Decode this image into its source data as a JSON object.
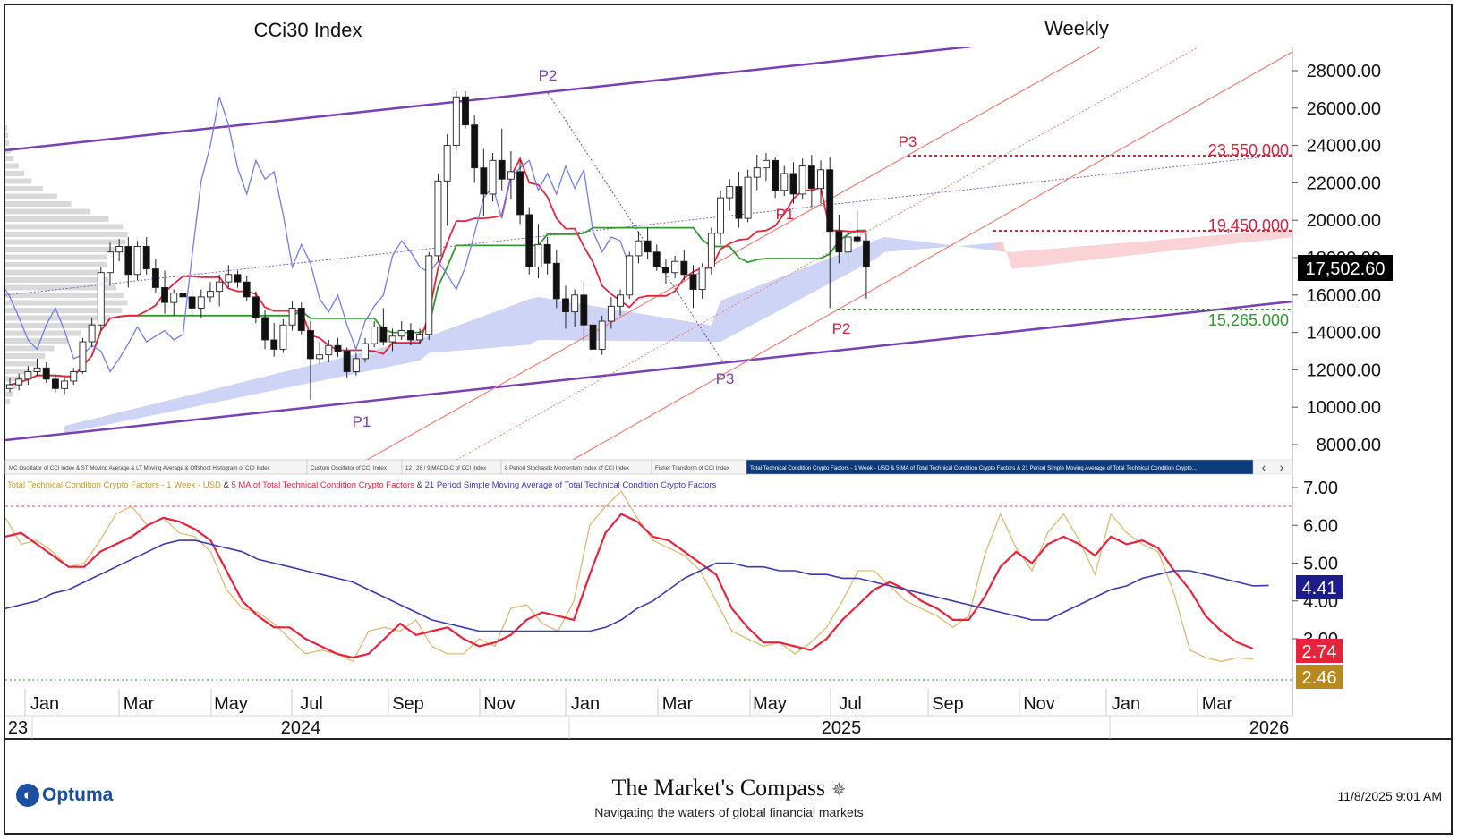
{
  "header": {
    "title": "CCi30 Index",
    "period": "Weekly"
  },
  "price_axis": {
    "ticks": [
      "28000.00",
      "26000.00",
      "24000.00",
      "22000.00",
      "20000.00",
      "18000.00",
      "16000.00",
      "14000.00",
      "12000.00",
      "10000.00",
      "8000.00"
    ],
    "last_price": "17,502.60"
  },
  "levels": {
    "resistance_upper": "23,550.000",
    "resistance_lower": "19,450.000",
    "support": "15,265.000"
  },
  "pivot_labels": {
    "purple": [
      "P1",
      "P2",
      "P3"
    ],
    "red": [
      "P1",
      "P2",
      "P3"
    ]
  },
  "indicator_tabs": [
    "MC Oscillator of CCI Index & ST Moving Average & LT Moving Average & Offshoot Histogram of CCI Index",
    "Custom Oscillator of CCI Index",
    "12 / 26 / 9 MACD-C of CCI Index",
    "8 Period Stochastic Momentum Index of CCI Index",
    "Fisher Transform of CCI Index",
    "Total Technical Condition Crypto Factors - 1 Week - USD & 5 MA of Total Technical Condition Crypto Factors & 21 Period Simple Moving Average of Total Technical Condition Crypto..."
  ],
  "tab_nav": {
    "prev": "‹",
    "next": "›"
  },
  "lower_panel": {
    "legend": {
      "series1": "Total Technical Condition Crypto Factors - 1 Week - USD",
      "sep1": " & ",
      "series2": "5 MA of Total Technical Condition Crypto Factors",
      "sep2": " & ",
      "series3": "21 Period Simple Moving Average of Total Technical Condition Crypto Factors"
    },
    "ticks": [
      "7.00",
      "6.00",
      "5.00",
      "4.00",
      "3.00"
    ],
    "value_blue": "4.41",
    "value_red": "2.74",
    "value_gold": "2.46"
  },
  "time_axis": {
    "months": [
      "Jan",
      "Mar",
      "May",
      "Jul",
      "Sep",
      "Nov",
      "Jan",
      "Mar",
      "May",
      "Jul",
      "Sep",
      "Nov",
      "Jan",
      "Mar"
    ],
    "years": [
      "23",
      "2024",
      "2025",
      "2026"
    ]
  },
  "footer": {
    "logo": "Optuma",
    "publisher": "The Market's Compass",
    "tagline": "Navigating the waters of global financial markets",
    "timestamp": "11/8/2025 9:01 AM"
  },
  "colors": {
    "sma21": "#3a3ab0",
    "ma5": "#e8243c",
    "tcf": "#e0b870",
    "kijun": "#2e9a2e",
    "tenkan": "#e8243c",
    "chikou": "#6f7cf0",
    "cloud": "#c5cdf5",
    "channel": "#7a3fb5",
    "pitchfork": "#f08070",
    "support": "#2e9a2e",
    "resistance": "#d6203c"
  },
  "chart_data": [
    {
      "type": "candlestick",
      "title": "CCi30 Index",
      "subtitle": "Weekly",
      "ylim": [
        7000,
        29000
      ],
      "ohlc": [
        [
          11000,
          11600,
          10800,
          11200
        ],
        [
          11200,
          11800,
          10900,
          11500
        ],
        [
          11500,
          12200,
          11200,
          11900
        ],
        [
          11900,
          12600,
          11700,
          12100
        ],
        [
          12100,
          12400,
          11300,
          11500
        ],
        [
          11500,
          11700,
          10800,
          11000
        ],
        [
          11000,
          11600,
          10700,
          11400
        ],
        [
          11400,
          12100,
          11200,
          11900
        ],
        [
          11900,
          13700,
          11800,
          13500
        ],
        [
          13500,
          14800,
          13200,
          14400
        ],
        [
          14400,
          17500,
          14100,
          17200
        ],
        [
          17200,
          18800,
          16500,
          18300
        ],
        [
          18300,
          19000,
          17800,
          18600
        ],
        [
          18600,
          19100,
          16400,
          17100
        ],
        [
          17100,
          18900,
          16800,
          18600
        ],
        [
          18600,
          19100,
          17100,
          17400
        ],
        [
          17400,
          17900,
          16100,
          16400
        ],
        [
          16400,
          17300,
          15000,
          15600
        ],
        [
          15600,
          16300,
          14900,
          16100
        ],
        [
          16100,
          16700,
          15700,
          15900
        ],
        [
          15900,
          16300,
          14900,
          15300
        ],
        [
          15300,
          16300,
          14800,
          15900
        ],
        [
          15900,
          16700,
          15600,
          16200
        ],
        [
          16200,
          17100,
          15400,
          16700
        ],
        [
          16700,
          17600,
          16400,
          17100
        ],
        [
          17100,
          17300,
          16400,
          16700
        ],
        [
          16700,
          17000,
          15700,
          15900
        ],
        [
          15900,
          16200,
          14500,
          14800
        ],
        [
          14800,
          15200,
          13100,
          13600
        ],
        [
          13600,
          14500,
          12700,
          13100
        ],
        [
          13100,
          14700,
          12900,
          14400
        ],
        [
          14400,
          15700,
          14100,
          15300
        ],
        [
          15300,
          15600,
          13900,
          14100
        ],
        [
          14100,
          14600,
          10400,
          12600
        ],
        [
          12600,
          13500,
          12300,
          12800
        ],
        [
          12800,
          13600,
          12400,
          13300
        ],
        [
          13300,
          13700,
          12700,
          13000
        ],
        [
          13000,
          13200,
          11600,
          11900
        ],
        [
          11900,
          12900,
          11700,
          12600
        ],
        [
          12600,
          13700,
          12400,
          13400
        ],
        [
          13400,
          14600,
          13200,
          14300
        ],
        [
          14300,
          15300,
          13300,
          13500
        ],
        [
          13500,
          14200,
          13000,
          13800
        ],
        [
          13800,
          14600,
          13600,
          14100
        ],
        [
          14100,
          14500,
          13300,
          13600
        ],
        [
          13600,
          14200,
          13400,
          13900
        ],
        [
          13900,
          18300,
          13600,
          18100
        ],
        [
          18100,
          22500,
          17800,
          22100
        ],
        [
          22100,
          24600,
          19700,
          24000
        ],
        [
          24000,
          26900,
          23700,
          26600
        ],
        [
          26600,
          26900,
          24900,
          25100
        ],
        [
          25100,
          25600,
          22000,
          22800
        ],
        [
          22800,
          23800,
          20200,
          21400
        ],
        [
          21400,
          23600,
          21000,
          23200
        ],
        [
          23200,
          24900,
          21600,
          22200
        ],
        [
          22200,
          23700,
          21100,
          22600
        ],
        [
          22600,
          23200,
          19800,
          20300
        ],
        [
          20300,
          20700,
          17100,
          17500
        ],
        [
          17500,
          19800,
          16900,
          18700
        ],
        [
          18700,
          19100,
          17100,
          17700
        ],
        [
          17700,
          18400,
          15300,
          15800
        ],
        [
          15800,
          16500,
          14200,
          15100
        ],
        [
          15100,
          16300,
          14300,
          16000
        ],
        [
          16000,
          16700,
          13500,
          14400
        ],
        [
          14400,
          15200,
          12300,
          13100
        ],
        [
          13100,
          14900,
          12800,
          14600
        ],
        [
          14600,
          15900,
          14200,
          15400
        ],
        [
          15400,
          16300,
          14900,
          16000
        ],
        [
          16000,
          18300,
          15800,
          18100
        ],
        [
          18100,
          19400,
          17700,
          18900
        ],
        [
          18900,
          19600,
          17900,
          18300
        ],
        [
          18300,
          18700,
          17300,
          17500
        ],
        [
          17500,
          17900,
          16600,
          17200
        ],
        [
          17200,
          18100,
          16900,
          17800
        ],
        [
          17800,
          18400,
          16800,
          17100
        ],
        [
          17100,
          17600,
          15300,
          16300
        ],
        [
          16300,
          17700,
          15800,
          17500
        ],
        [
          17500,
          19600,
          17100,
          19300
        ],
        [
          19300,
          21600,
          18700,
          21200
        ],
        [
          21200,
          22200,
          20500,
          21800
        ],
        [
          21800,
          22600,
          19600,
          20100
        ],
        [
          20100,
          22700,
          19900,
          22300
        ],
        [
          22300,
          23500,
          21600,
          22800
        ],
        [
          22800,
          23600,
          22100,
          23200
        ],
        [
          23200,
          23400,
          21200,
          21600
        ],
        [
          21600,
          22900,
          21300,
          22500
        ],
        [
          22500,
          23100,
          20900,
          21400
        ],
        [
          21400,
          23300,
          21100,
          22900
        ],
        [
          22900,
          23500,
          20700,
          21700
        ],
        [
          21700,
          23200,
          20900,
          22700
        ],
        [
          22700,
          23400,
          15300,
          19400
        ],
        [
          19400,
          20300,
          17700,
          18300
        ],
        [
          18300,
          19600,
          17500,
          19100
        ],
        [
          19100,
          20500,
          18700,
          18900
        ],
        [
          18900,
          19300,
          15800,
          17500
        ]
      ]
    },
    {
      "type": "line",
      "title": "Total Technical Condition Crypto Factors - 1 Week - USD & 5 MA of Total Technical Condition Crypto Factors & 21 Period Simple Moving Average of Total Technical Condition Crypto Factors",
      "ylim": [
        2.2,
        7.3
      ],
      "series": [
        {
          "name": "21 Period Simple Moving Average of Total Technical Condition Crypto Factors",
          "values": [
            3.8,
            3.9,
            4.0,
            4.2,
            4.3,
            4.5,
            4.7,
            4.9,
            5.1,
            5.3,
            5.5,
            5.6,
            5.6,
            5.5,
            5.4,
            5.3,
            5.1,
            5.0,
            4.9,
            4.8,
            4.7,
            4.6,
            4.5,
            4.3,
            4.1,
            3.9,
            3.7,
            3.5,
            3.4,
            3.3,
            3.2,
            3.2,
            3.2,
            3.2,
            3.2,
            3.2,
            3.2,
            3.2,
            3.3,
            3.5,
            3.8,
            4.0,
            4.3,
            4.6,
            4.8,
            5.0,
            5.0,
            4.9,
            4.9,
            4.8,
            4.8,
            4.7,
            4.7,
            4.6,
            4.6,
            4.5,
            4.4,
            4.3,
            4.2,
            4.1,
            4.0,
            3.9,
            3.8,
            3.7,
            3.6,
            3.5,
            3.5,
            3.7,
            3.9,
            4.1,
            4.3,
            4.4,
            4.6,
            4.7,
            4.8,
            4.8,
            4.7,
            4.6,
            4.5,
            4.4,
            4.41
          ]
        },
        {
          "name": "5 MA of Total Technical Condition Crypto Factors",
          "values": [
            5.7,
            5.8,
            5.5,
            5.2,
            4.9,
            4.9,
            5.3,
            5.5,
            5.7,
            6.0,
            6.2,
            6.1,
            5.9,
            5.6,
            4.8,
            4.0,
            3.6,
            3.3,
            3.3,
            3.0,
            2.8,
            2.6,
            2.5,
            2.6,
            3.0,
            3.4,
            3.1,
            3.2,
            3.3,
            3.0,
            2.8,
            2.9,
            3.1,
            3.5,
            3.7,
            3.6,
            3.5,
            4.7,
            5.8,
            6.3,
            6.1,
            5.7,
            5.6,
            5.3,
            5.0,
            4.7,
            3.8,
            3.3,
            2.9,
            2.9,
            2.8,
            2.7,
            3.0,
            3.5,
            3.9,
            4.3,
            4.5,
            4.3,
            4.0,
            3.8,
            3.5,
            3.5,
            4.1,
            4.9,
            5.3,
            5.0,
            5.5,
            5.7,
            5.5,
            5.2,
            5.7,
            5.5,
            5.6,
            5.4,
            4.8,
            4.3,
            3.6,
            3.2,
            2.9,
            2.74
          ]
        },
        {
          "name": "Total Technical Condition Crypto Factors - 1 Week - USD",
          "values": [
            6.2,
            5.5,
            5.6,
            5.3,
            4.9,
            5.0,
            5.6,
            6.3,
            6.5,
            6.0,
            6.2,
            5.8,
            5.7,
            5.3,
            4.3,
            3.8,
            3.7,
            3.4,
            3.0,
            2.6,
            2.7,
            2.6,
            2.4,
            3.2,
            3.3,
            3.2,
            3.5,
            2.8,
            2.6,
            2.6,
            3.0,
            2.8,
            3.8,
            3.9,
            3.4,
            3.2,
            4.0,
            6.0,
            6.5,
            6.9,
            6.2,
            5.6,
            5.4,
            5.2,
            4.8,
            4.0,
            3.2,
            3.0,
            2.8,
            2.9,
            2.6,
            2.9,
            3.3,
            4.0,
            4.8,
            4.8,
            4.4,
            4.0,
            3.8,
            3.6,
            3.3,
            3.6,
            5.2,
            6.3,
            5.4,
            4.8,
            5.8,
            6.3,
            5.6,
            4.7,
            6.3,
            5.8,
            5.5,
            5.3,
            4.2,
            2.7,
            2.5,
            2.4,
            2.5,
            2.46
          ]
        }
      ]
    }
  ]
}
